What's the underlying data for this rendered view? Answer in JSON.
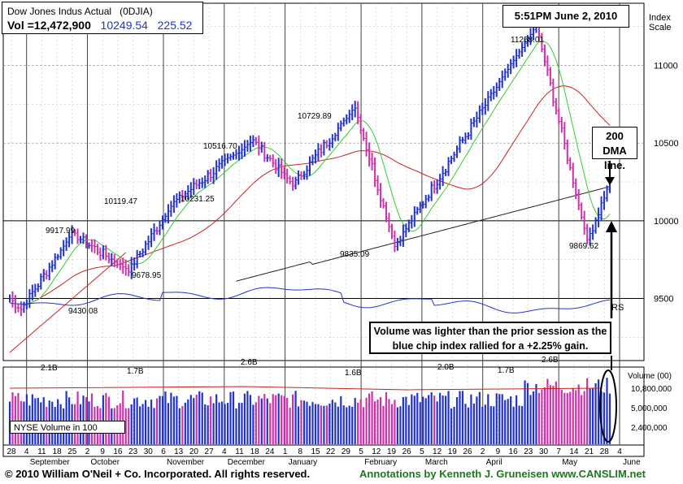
{
  "header": {
    "title": "Dow Jones Indus Actual",
    "symbol": "(0DJIA)",
    "vol_label": "Vol =12,472,900",
    "price": "10249.54",
    "change": "225.52"
  },
  "timestamp": "5:51PM June 2, 2010",
  "index_scale_label": "Index\nScale",
  "annotations": {
    "dma": "200 DMA line.",
    "note": "Volume was lighter than the prior session as the blue chip index rallied for a +2.25% gain.",
    "rs": "RS"
  },
  "volume_panel": {
    "label": "NYSE Volume in 100",
    "axis_title": "Volume (00)",
    "ticks": [
      "10,800,000",
      "5,000,000",
      "2,400,000"
    ],
    "peak_labels": [
      "2.1B",
      "1.7B",
      "2.6B",
      "1.6B",
      "2.0B",
      "1.7B",
      "2.6B"
    ]
  },
  "footer": {
    "copyright": "© 2010 William O'Neil + Co. Incorporated. All rights reserved.",
    "annotations_credit": "Annotations by Kenneth J. Gruneisen www.CANSLIM.net"
  },
  "colors": {
    "up_bar": "#2233cc",
    "down_bar": "#cc33aa",
    "ma50": "#33cc33",
    "ma200_black": "#222222",
    "ma_red": "#cc2222",
    "rs_line": "#2233cc",
    "credit_green": "#1a7a1a"
  },
  "chart_data": {
    "type": "bar",
    "y_ticks": [
      9500,
      10000,
      10500,
      11000
    ],
    "y_range": [
      9100,
      11400
    ],
    "x_tick_labels": [
      "28",
      "4",
      "11",
      "18",
      "25",
      "2",
      "9",
      "16",
      "23",
      "30",
      "6",
      "13",
      "20",
      "27",
      "4",
      "11",
      "18",
      "24",
      "1",
      "8",
      "15",
      "22",
      "29",
      "5",
      "12",
      "19",
      "26",
      "5",
      "12",
      "19",
      "26",
      "2",
      "9",
      "16",
      "23",
      "30",
      "7",
      "14",
      "21",
      "28",
      "4"
    ],
    "month_labels": [
      "September",
      "October",
      "November",
      "December",
      "January",
      "February",
      "March",
      "April",
      "May",
      "June"
    ],
    "price_labels": [
      {
        "value": 9917.99
      },
      {
        "value": 9430.08
      },
      {
        "value": 10119.47
      },
      {
        "value": 9678.95
      },
      {
        "value": 10516.7
      },
      {
        "value": 10231.25
      },
      {
        "value": 10729.89
      },
      {
        "value": 9835.09
      },
      {
        "value": 11258.01
      },
      {
        "value": 9869.62
      }
    ],
    "key_points": [
      {
        "label": "start",
        "value": 9500
      },
      {
        "label": "low",
        "value": 9430.08
      },
      {
        "label": "high",
        "value": 9917.99
      },
      {
        "label": "low",
        "value": 9678.95
      },
      {
        "label": "high",
        "value": 10119.47
      },
      {
        "label": "high",
        "value": 10516.7
      },
      {
        "label": "low",
        "value": 10231.25
      },
      {
        "label": "high",
        "value": 10729.89
      },
      {
        "label": "low",
        "value": 9835.09
      },
      {
        "label": "high",
        "value": 11258.01
      },
      {
        "label": "low",
        "value": 9869.62
      },
      {
        "label": "last",
        "value": 10249.54
      }
    ]
  }
}
